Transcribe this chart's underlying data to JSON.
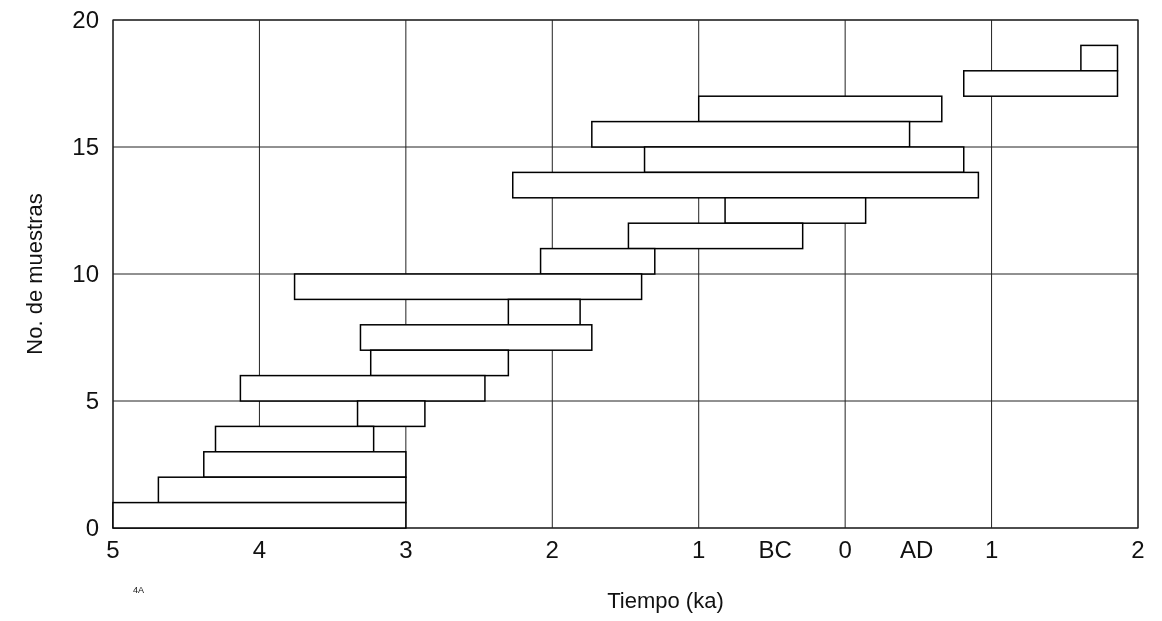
{
  "chart_data": {
    "type": "bar",
    "orientation": "horizontal",
    "xlabel": "Tiempo (ka)",
    "ylabel": "No. de muestras",
    "x": [
      18.5,
      17.5,
      16.5,
      15.5,
      14.5,
      13.5,
      12.5,
      11.5,
      10.5,
      9.5,
      8.5,
      7.5,
      6.5,
      5.5,
      4.5,
      3.5,
      2.5,
      1.5,
      0.5
    ],
    "base": [
      1.61,
      0.81,
      -1.0,
      -1.73,
      -1.37,
      -2.27,
      -0.82,
      -1.48,
      -2.08,
      -3.76,
      -2.3,
      -3.31,
      -3.24,
      -4.13,
      -3.33,
      -4.3,
      -4.38,
      -4.69,
      -5.0
    ],
    "values": [
      0.25,
      1.05,
      1.66,
      2.17,
      2.18,
      3.18,
      0.96,
      1.19,
      0.78,
      2.37,
      0.49,
      1.58,
      0.94,
      1.67,
      0.46,
      1.08,
      1.38,
      1.69,
      2.0
    ],
    "color": "#ffffff",
    "xlim": [
      -5,
      2
    ],
    "xticks": [
      {
        "value": -5,
        "label": "5"
      },
      {
        "value": -4,
        "label": "4"
      },
      {
        "value": -3,
        "label": "3"
      },
      {
        "value": -2,
        "label": "2"
      },
      {
        "value": -1,
        "label": "1"
      },
      0,
      1,
      2
    ],
    "ylim": [
      0,
      20
    ],
    "yticks": [
      0,
      5,
      10,
      15,
      20
    ],
    "grid": true,
    "annotations": [
      "BC",
      "AD",
      "4A"
    ]
  }
}
